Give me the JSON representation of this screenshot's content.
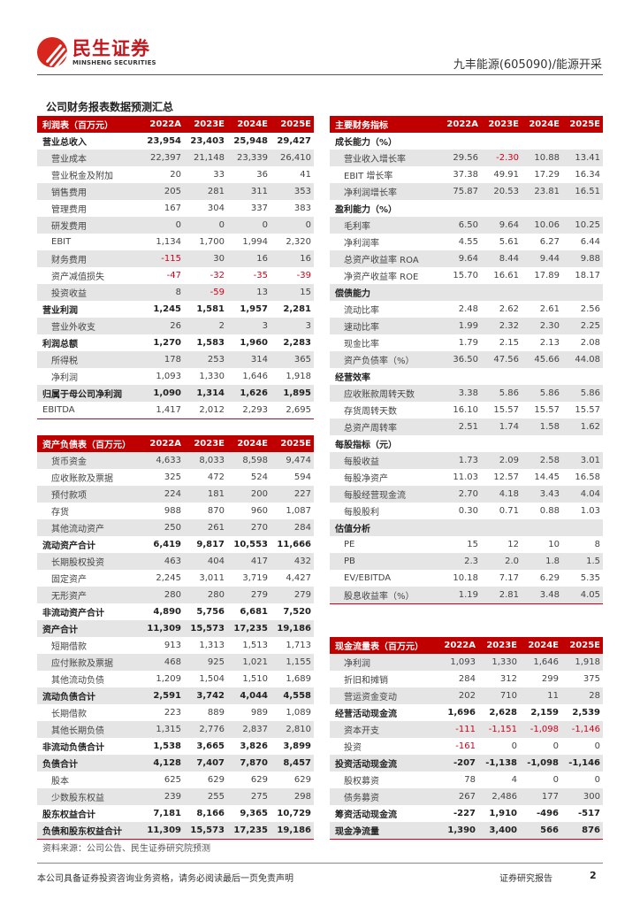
{
  "header": {
    "logo_cn": "民生证券",
    "logo_en": "MINSHENG SECURITIES",
    "report_subject": "九丰能源(605090)/能源开采",
    "brand_color": "#c8161d"
  },
  "section_title": "公司财务报表数据预测汇总",
  "years": [
    "2022A",
    "2023E",
    "2024E",
    "2025E"
  ],
  "income": {
    "title": "利润表（百万元）",
    "rows": [
      {
        "label": "营业总收入",
        "values": [
          "23,954",
          "23,403",
          "25,948",
          "29,427"
        ],
        "bold": true
      },
      {
        "label": "营业成本",
        "values": [
          "22,397",
          "21,148",
          "23,339",
          "26,410"
        ]
      },
      {
        "label": "营业税金及附加",
        "values": [
          "20",
          "33",
          "36",
          "41"
        ]
      },
      {
        "label": "销售费用",
        "values": [
          "205",
          "281",
          "311",
          "353"
        ]
      },
      {
        "label": "管理费用",
        "values": [
          "167",
          "304",
          "337",
          "383"
        ]
      },
      {
        "label": "研发费用",
        "values": [
          "0",
          "0",
          "0",
          "0"
        ]
      },
      {
        "label": "EBIT",
        "values": [
          "1,134",
          "1,700",
          "1,994",
          "2,320"
        ]
      },
      {
        "label": "财务费用",
        "values": [
          "-115",
          "30",
          "16",
          "16"
        ]
      },
      {
        "label": "资产减值损失",
        "values": [
          "-47",
          "-32",
          "-35",
          "-39"
        ]
      },
      {
        "label": "投资收益",
        "values": [
          "8",
          "-59",
          "13",
          "15"
        ]
      },
      {
        "label": "营业利润",
        "values": [
          "1,245",
          "1,581",
          "1,957",
          "2,281"
        ],
        "bold": true
      },
      {
        "label": "营业外收支",
        "values": [
          "26",
          "2",
          "3",
          "3"
        ]
      },
      {
        "label": "利润总额",
        "values": [
          "1,270",
          "1,583",
          "1,960",
          "2,283"
        ],
        "bold": true
      },
      {
        "label": "所得税",
        "values": [
          "178",
          "253",
          "314",
          "365"
        ]
      },
      {
        "label": "净利润",
        "values": [
          "1,093",
          "1,330",
          "1,646",
          "1,918"
        ]
      },
      {
        "label": "归属于母公司净利润",
        "values": [
          "1,090",
          "1,314",
          "1,626",
          "1,895"
        ],
        "bold": true
      },
      {
        "label": "EBITDA",
        "values": [
          "1,417",
          "2,012",
          "2,293",
          "2,695"
        ],
        "flat": true
      }
    ]
  },
  "balance": {
    "title": "资产负债表（百万元）",
    "rows": [
      {
        "label": "货币资金",
        "values": [
          "4,633",
          "8,033",
          "8,598",
          "9,474"
        ]
      },
      {
        "label": "应收账款及票据",
        "values": [
          "325",
          "472",
          "524",
          "594"
        ]
      },
      {
        "label": "预付款项",
        "values": [
          "224",
          "181",
          "200",
          "227"
        ]
      },
      {
        "label": "存货",
        "values": [
          "988",
          "870",
          "960",
          "1,087"
        ]
      },
      {
        "label": "其他流动资产",
        "values": [
          "250",
          "261",
          "270",
          "284"
        ]
      },
      {
        "label": "流动资产合计",
        "values": [
          "6,419",
          "9,817",
          "10,553",
          "11,666"
        ],
        "bold": true
      },
      {
        "label": "长期股权投资",
        "values": [
          "463",
          "404",
          "417",
          "432"
        ]
      },
      {
        "label": "固定资产",
        "values": [
          "2,245",
          "3,011",
          "3,719",
          "4,427"
        ]
      },
      {
        "label": "无形资产",
        "values": [
          "280",
          "280",
          "279",
          "279"
        ]
      },
      {
        "label": "非流动资产合计",
        "values": [
          "4,890",
          "5,756",
          "6,681",
          "7,520"
        ],
        "bold": true
      },
      {
        "label": "资产合计",
        "values": [
          "11,309",
          "15,573",
          "17,235",
          "19,186"
        ],
        "bold": true
      },
      {
        "label": "短期借款",
        "values": [
          "913",
          "1,313",
          "1,513",
          "1,713"
        ]
      },
      {
        "label": "应付账款及票据",
        "values": [
          "468",
          "925",
          "1,021",
          "1,155"
        ]
      },
      {
        "label": "其他流动负债",
        "values": [
          "1,209",
          "1,504",
          "1,510",
          "1,689"
        ]
      },
      {
        "label": "流动负债合计",
        "values": [
          "2,591",
          "3,742",
          "4,044",
          "4,558"
        ],
        "bold": true
      },
      {
        "label": "长期借款",
        "values": [
          "223",
          "889",
          "989",
          "1,089"
        ]
      },
      {
        "label": "其他长期负债",
        "values": [
          "1,315",
          "2,776",
          "2,837",
          "2,810"
        ]
      },
      {
        "label": "非流动负债合计",
        "values": [
          "1,538",
          "3,665",
          "3,826",
          "3,899"
        ],
        "bold": true
      },
      {
        "label": "负债合计",
        "values": [
          "4,128",
          "7,407",
          "7,870",
          "8,457"
        ],
        "bold": true
      },
      {
        "label": "股本",
        "values": [
          "625",
          "629",
          "629",
          "629"
        ]
      },
      {
        "label": "少数股东权益",
        "values": [
          "239",
          "255",
          "275",
          "298"
        ]
      },
      {
        "label": "股东权益合计",
        "values": [
          "7,181",
          "8,166",
          "9,365",
          "10,729"
        ],
        "bold": true
      },
      {
        "label": "负债和股东权益合计",
        "values": [
          "11,309",
          "15,573",
          "17,235",
          "19,186"
        ],
        "bold": true
      }
    ]
  },
  "ratios": {
    "title": "主要财务指标",
    "rows": [
      {
        "label": "成长能力（%）",
        "section": true
      },
      {
        "label": "营业收入增长率",
        "values": [
          "29.56",
          "-2.30",
          "10.88",
          "13.41"
        ]
      },
      {
        "label": "EBIT 增长率",
        "values": [
          "37.38",
          "49.91",
          "17.29",
          "16.34"
        ]
      },
      {
        "label": "净利润增长率",
        "values": [
          "75.87",
          "20.53",
          "23.81",
          "16.51"
        ]
      },
      {
        "label": "盈利能力（%）",
        "section": true
      },
      {
        "label": "毛利率",
        "values": [
          "6.50",
          "9.64",
          "10.06",
          "10.25"
        ]
      },
      {
        "label": "净利润率",
        "values": [
          "4.55",
          "5.61",
          "6.27",
          "6.44"
        ]
      },
      {
        "label": "总资产收益率 ROA",
        "values": [
          "9.64",
          "8.44",
          "9.44",
          "9.88"
        ]
      },
      {
        "label": "净资产收益率 ROE",
        "values": [
          "15.70",
          "16.61",
          "17.89",
          "18.17"
        ]
      },
      {
        "label": "偿债能力",
        "section": true
      },
      {
        "label": "流动比率",
        "values": [
          "2.48",
          "2.62",
          "2.61",
          "2.56"
        ]
      },
      {
        "label": "速动比率",
        "values": [
          "1.99",
          "2.32",
          "2.30",
          "2.25"
        ]
      },
      {
        "label": "现金比率",
        "values": [
          "1.79",
          "2.15",
          "2.13",
          "2.08"
        ]
      },
      {
        "label": "资产负债率（%）",
        "values": [
          "36.50",
          "47.56",
          "45.66",
          "44.08"
        ]
      },
      {
        "label": "经营效率",
        "section": true
      },
      {
        "label": "应收账款周转天数",
        "values": [
          "3.38",
          "5.86",
          "5.86",
          "5.86"
        ]
      },
      {
        "label": "存货周转天数",
        "values": [
          "16.10",
          "15.57",
          "15.57",
          "15.57"
        ]
      },
      {
        "label": "总资产周转率",
        "values": [
          "2.51",
          "1.74",
          "1.58",
          "1.62"
        ]
      },
      {
        "label": "每股指标（元）",
        "section": true
      },
      {
        "label": "每股收益",
        "values": [
          "1.73",
          "2.09",
          "2.58",
          "3.01"
        ]
      },
      {
        "label": "每股净资产",
        "values": [
          "11.03",
          "12.57",
          "14.45",
          "16.58"
        ]
      },
      {
        "label": "每股经营现金流",
        "values": [
          "2.70",
          "4.18",
          "3.43",
          "4.04"
        ]
      },
      {
        "label": "每股股利",
        "values": [
          "0.30",
          "0.71",
          "0.88",
          "1.03"
        ]
      },
      {
        "label": "估值分析",
        "section": true
      },
      {
        "label": "PE",
        "values": [
          "15",
          "12",
          "10",
          "8"
        ]
      },
      {
        "label": "PB",
        "values": [
          "2.3",
          "2.0",
          "1.8",
          "1.5"
        ]
      },
      {
        "label": "EV/EBITDA",
        "values": [
          "10.18",
          "7.17",
          "6.29",
          "5.35"
        ]
      },
      {
        "label": "股息收益率（%）",
        "values": [
          "1.19",
          "2.81",
          "3.48",
          "4.05"
        ]
      }
    ]
  },
  "cashflow": {
    "title": "现金流量表（百万元）",
    "rows": [
      {
        "label": "净利润",
        "values": [
          "1,093",
          "1,330",
          "1,646",
          "1,918"
        ]
      },
      {
        "label": "折旧和摊销",
        "values": [
          "284",
          "312",
          "299",
          "375"
        ]
      },
      {
        "label": "营运资金变动",
        "values": [
          "202",
          "710",
          "11",
          "28"
        ]
      },
      {
        "label": "经营活动现金流",
        "values": [
          "1,696",
          "2,628",
          "2,159",
          "2,539"
        ],
        "bold": true
      },
      {
        "label": "资本开支",
        "values": [
          "-111",
          "-1,151",
          "-1,098",
          "-1,146"
        ]
      },
      {
        "label": "投资",
        "values": [
          "-161",
          "0",
          "0",
          "0"
        ]
      },
      {
        "label": "投资活动现金流",
        "values": [
          "-207",
          "-1,138",
          "-1,098",
          "-1,146"
        ],
        "bold": true
      },
      {
        "label": "股权募资",
        "values": [
          "78",
          "4",
          "0",
          "0"
        ]
      },
      {
        "label": "债务募资",
        "values": [
          "267",
          "2,486",
          "177",
          "300"
        ]
      },
      {
        "label": "筹资活动现金流",
        "values": [
          "-227",
          "1,910",
          "-496",
          "-517"
        ],
        "bold": true
      },
      {
        "label": "现金净流量",
        "values": [
          "1,390",
          "3,400",
          "566",
          "876"
        ],
        "bold": true
      }
    ]
  },
  "source_note": "资料来源：公司公告、民生证券研究院预测",
  "footer": {
    "disclaimer": "本公司具备证券投资咨询业务资格，请务必阅读最后一页免责声明",
    "report_type": "证券研究报告",
    "page_number": "2"
  },
  "colors": {
    "header_red": "#c00000",
    "negative_red": "#d0021b",
    "stripe_gray": "#e5e5e5"
  }
}
